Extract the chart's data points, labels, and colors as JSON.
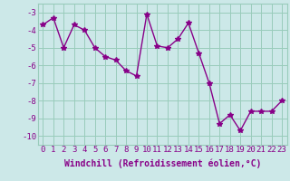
{
  "x": [
    0,
    1,
    2,
    3,
    4,
    5,
    6,
    7,
    8,
    9,
    10,
    11,
    12,
    13,
    14,
    15,
    16,
    17,
    18,
    19,
    20,
    21,
    22,
    23
  ],
  "y": [
    -3.7,
    -3.3,
    -5.0,
    -3.7,
    -4.0,
    -5.0,
    -5.5,
    -5.7,
    -6.3,
    -6.6,
    -3.1,
    -4.9,
    -5.0,
    -4.5,
    -3.6,
    -5.3,
    -7.0,
    -9.3,
    -8.8,
    -9.7,
    -8.6,
    -8.6,
    -8.6,
    -8.0
  ],
  "line_color": "#880088",
  "marker": "*",
  "marker_size": 4,
  "bg_color": "#cce8e8",
  "grid_color": "#99ccbb",
  "xlabel": "Windchill (Refroidissement éolien,°C)",
  "ylim": [
    -10.5,
    -2.5
  ],
  "xlim": [
    -0.5,
    23.5
  ],
  "yticks": [
    -10,
    -9,
    -8,
    -7,
    -6,
    -5,
    -4,
    -3
  ],
  "xticks": [
    0,
    1,
    2,
    3,
    4,
    5,
    6,
    7,
    8,
    9,
    10,
    11,
    12,
    13,
    14,
    15,
    16,
    17,
    18,
    19,
    20,
    21,
    22,
    23
  ],
  "xlabel_fontsize": 7,
  "tick_fontsize": 6.5,
  "line_width": 1.0
}
